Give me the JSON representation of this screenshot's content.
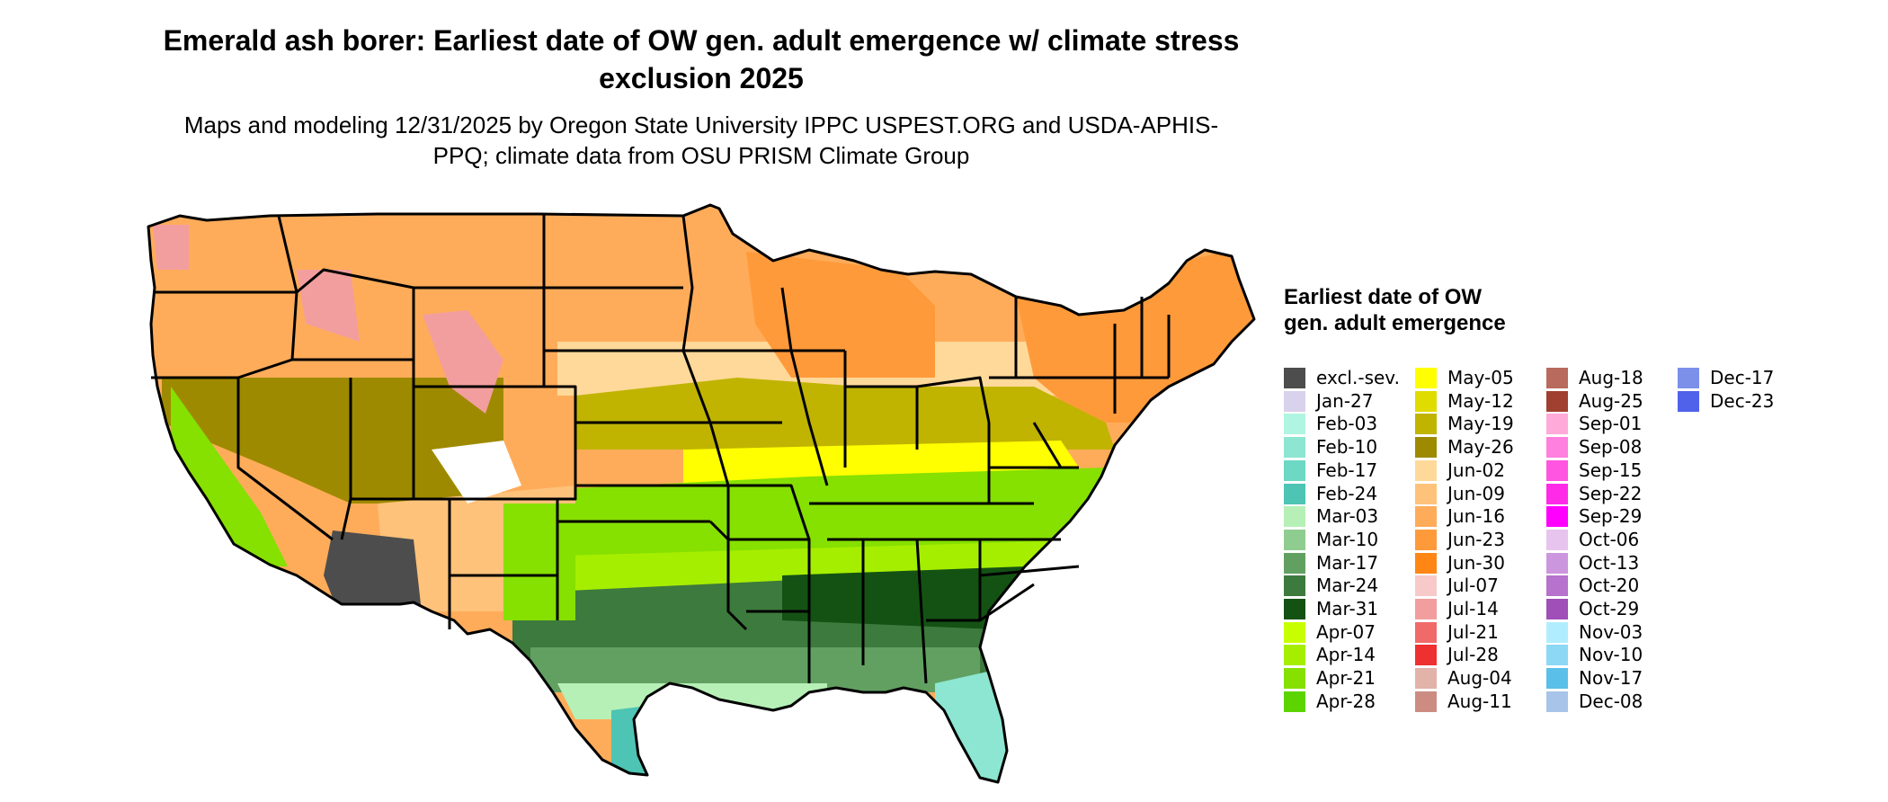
{
  "title": "Emerald ash borer: Earliest date of OW gen. adult emergence w/ climate stress exclusion 2025",
  "subtitle": "Maps and modeling 12/31/2025 by Oregon State University IPPC USPEST.ORG and USDA-APHIS-PPQ; climate data from OSU PRISM Climate Group",
  "legend": {
    "title": "Earliest date of OW gen. adult emergence",
    "columns": [
      [
        {
          "label": "excl.-sev.",
          "color": "#4d4d4d"
        },
        {
          "label": "Jan-27",
          "color": "#d9d2ec"
        },
        {
          "label": "Feb-03",
          "color": "#b0f5e2"
        },
        {
          "label": "Feb-10",
          "color": "#8ce6d1"
        },
        {
          "label": "Feb-17",
          "color": "#6dd8c3"
        },
        {
          "label": "Feb-24",
          "color": "#4ec4b4"
        },
        {
          "label": "Mar-03",
          "color": "#b6f0b6"
        },
        {
          "label": "Mar-10",
          "color": "#8fcc8f"
        },
        {
          "label": "Mar-17",
          "color": "#62a062"
        },
        {
          "label": "Mar-24",
          "color": "#3d7a3d"
        },
        {
          "label": "Mar-31",
          "color": "#145214"
        },
        {
          "label": "Apr-07",
          "color": "#c8ff00"
        },
        {
          "label": "Apr-14",
          "color": "#a6ee00"
        },
        {
          "label": "Apr-21",
          "color": "#86e000"
        },
        {
          "label": "Apr-28",
          "color": "#5cd400"
        }
      ],
      [
        {
          "label": "May-05",
          "color": "#ffff00"
        },
        {
          "label": "May-12",
          "color": "#e0dc00"
        },
        {
          "label": "May-19",
          "color": "#c0b400"
        },
        {
          "label": "May-26",
          "color": "#9e8a00"
        },
        {
          "label": "Jun-02",
          "color": "#ffd99a"
        },
        {
          "label": "Jun-09",
          "color": "#ffc27a"
        },
        {
          "label": "Jun-16",
          "color": "#ffac5a"
        },
        {
          "label": "Jun-23",
          "color": "#ff9a3a"
        },
        {
          "label": "Jun-30",
          "color": "#ff8615"
        },
        {
          "label": "Jul-07",
          "color": "#f7c9c9"
        },
        {
          "label": "Jul-14",
          "color": "#f29e9e"
        },
        {
          "label": "Jul-21",
          "color": "#f06a6a"
        },
        {
          "label": "Jul-28",
          "color": "#ef3030"
        },
        {
          "label": "Aug-04",
          "color": "#e2b3a8"
        },
        {
          "label": "Aug-11",
          "color": "#cc8c82"
        }
      ],
      [
        {
          "label": "Aug-18",
          "color": "#b86a5c"
        },
        {
          "label": "Aug-25",
          "color": "#a04030"
        },
        {
          "label": "Sep-01",
          "color": "#ffaad8"
        },
        {
          "label": "Sep-08",
          "color": "#ff80de"
        },
        {
          "label": "Sep-15",
          "color": "#ff55e0"
        },
        {
          "label": "Sep-22",
          "color": "#ff2ae8"
        },
        {
          "label": "Sep-29",
          "color": "#ff00ff"
        },
        {
          "label": "Oct-06",
          "color": "#e6c4ee"
        },
        {
          "label": "Oct-13",
          "color": "#cc96de"
        },
        {
          "label": "Oct-20",
          "color": "#b672cc"
        },
        {
          "label": "Oct-29",
          "color": "#a04eb8"
        },
        {
          "label": "Nov-03",
          "color": "#b0eeff"
        },
        {
          "label": "Nov-10",
          "color": "#8cd8f5"
        },
        {
          "label": "Nov-17",
          "color": "#5ac0ea"
        },
        {
          "label": "Dec-08",
          "color": "#a8c4e8"
        }
      ],
      [
        {
          "label": "Dec-17",
          "color": "#7c90ea"
        },
        {
          "label": "Dec-23",
          "color": "#5062ea"
        }
      ]
    ]
  },
  "map_colors": {
    "north": "#ffac5a",
    "northeast": "#ff9a3a",
    "north_light": "#ffc27a",
    "midwest": "#ffd99a",
    "corn_belt": "#c0b400",
    "ohio_valley": "#ffff00",
    "central": "#86e000",
    "south_central": "#a6ee00",
    "deep_south": "#3d7a3d",
    "deep_south_dark": "#145214",
    "gulf": "#62a062",
    "coast": "#b6f0b6",
    "florida": "#8ce6d1",
    "texas_coast": "#4ec4b4",
    "mountain_olive": "#9e8a00",
    "high_elevation": "#f29e9e",
    "snow": "#ffffff",
    "excluded": "#4d4d4d",
    "california_valley": "#86e000",
    "state_border": "#000000"
  }
}
